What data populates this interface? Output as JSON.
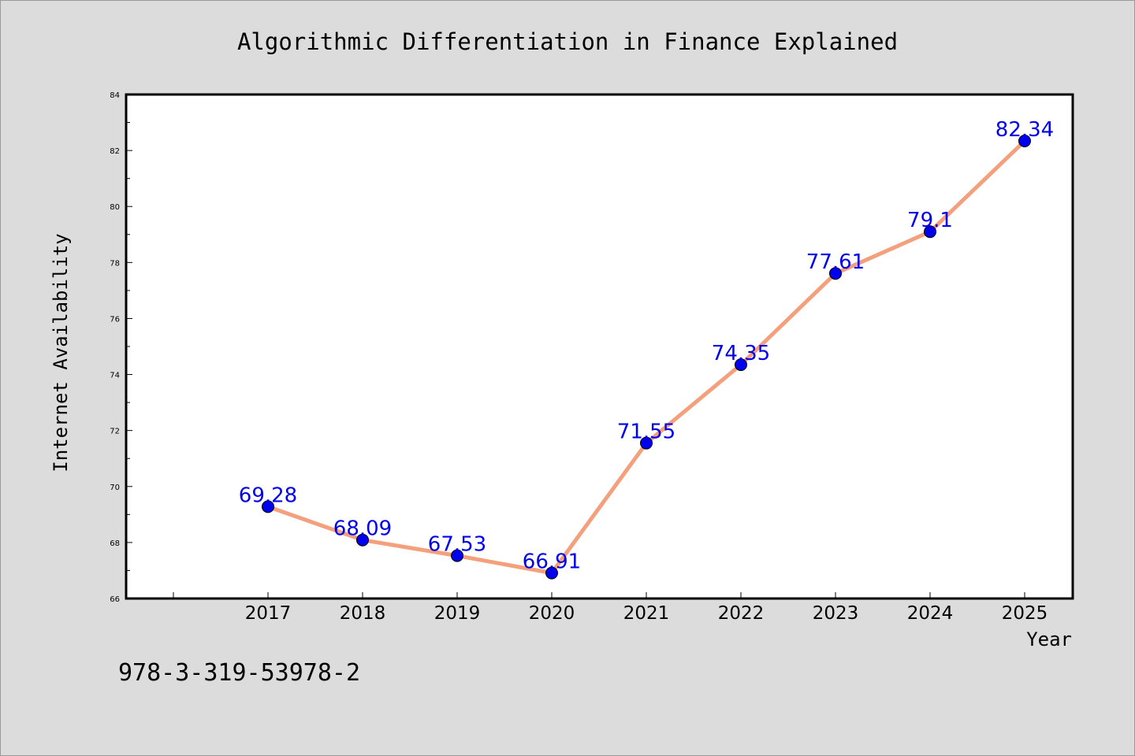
{
  "chart_data": {
    "type": "line",
    "title": "Algorithmic Differentiation in Finance Explained",
    "xlabel": "Year",
    "ylabel": "Internet Availability",
    "categories": [
      "2017",
      "2018",
      "2019",
      "2020",
      "2021",
      "2022",
      "2023",
      "2024",
      "2025"
    ],
    "series": [
      {
        "values": [
          69.28,
          68.09,
          67.53,
          66.91,
          71.55,
          74.35,
          77.61,
          79.1,
          82.34
        ],
        "data_labels": [
          "69.28",
          "68.09",
          "67.53",
          "66.91",
          "71.55",
          "74.35",
          "77.61",
          "79.1",
          "82.34"
        ]
      }
    ],
    "ylim": [
      66,
      84
    ],
    "yticks": [
      "66",
      "68",
      "70",
      "72",
      "74",
      "76",
      "78",
      "80",
      "82",
      "84"
    ],
    "grid": false,
    "legend": "none",
    "colors": {
      "line": "#f4a07d",
      "marker": "#0000ee",
      "label": "#0000ee",
      "background": "#dcdcdc",
      "plot_background": "#ffffff"
    }
  },
  "footer": {
    "isbn": "978-3-319-53978-2"
  }
}
